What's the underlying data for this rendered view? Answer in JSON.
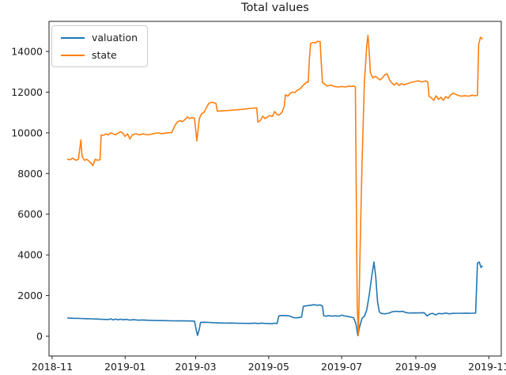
{
  "chart_data": {
    "type": "line",
    "title": "Total values",
    "legend_position": "upper left",
    "grid": false,
    "x_axis": {
      "unit": "days since 2018-11-01",
      "range": [
        -2.6,
        375.4
      ],
      "ticks": [
        {
          "day": 0,
          "label": "2018-11"
        },
        {
          "day": 61,
          "label": "2019-01"
        },
        {
          "day": 120,
          "label": "2019-03"
        },
        {
          "day": 181,
          "label": "2019-05"
        },
        {
          "day": 242,
          "label": "2019-07"
        },
        {
          "day": 304,
          "label": "2019-09"
        },
        {
          "day": 365,
          "label": "2019-11"
        }
      ]
    },
    "y_axis": {
      "range": [
        -972,
        15480
      ],
      "ticks": [
        0,
        2000,
        4000,
        6000,
        8000,
        10000,
        12000,
        14000
      ]
    },
    "series": [
      {
        "name": "valuation",
        "color": "#1f77b4",
        "points": [
          [
            13,
            900
          ],
          [
            18,
            885
          ],
          [
            23,
            875
          ],
          [
            28,
            865
          ],
          [
            33,
            855
          ],
          [
            38,
            845
          ],
          [
            43,
            830
          ],
          [
            47,
            820
          ],
          [
            49,
            855
          ],
          [
            51,
            800
          ],
          [
            53,
            845
          ],
          [
            55,
            805
          ],
          [
            57,
            840
          ],
          [
            59,
            810
          ],
          [
            62,
            830
          ],
          [
            65,
            795
          ],
          [
            68,
            815
          ],
          [
            72,
            790
          ],
          [
            76,
            800
          ],
          [
            80,
            785
          ],
          [
            85,
            775
          ],
          [
            90,
            770
          ],
          [
            95,
            765
          ],
          [
            100,
            760
          ],
          [
            105,
            755
          ],
          [
            110,
            755
          ],
          [
            115,
            750
          ],
          [
            119,
            745
          ],
          [
            120.5,
            300
          ],
          [
            121.5,
            40
          ],
          [
            123,
            350
          ],
          [
            124,
            680
          ],
          [
            127,
            690
          ],
          [
            131,
            680
          ],
          [
            135,
            665
          ],
          [
            140,
            655
          ],
          [
            145,
            645
          ],
          [
            150,
            650
          ],
          [
            155,
            640
          ],
          [
            160,
            635
          ],
          [
            165,
            630
          ],
          [
            169,
            645
          ],
          [
            172,
            625
          ],
          [
            175,
            645
          ],
          [
            178,
            630
          ],
          [
            181,
            625
          ],
          [
            184,
            615
          ],
          [
            186,
            645
          ],
          [
            188,
            620
          ],
          [
            189.5,
            1000
          ],
          [
            192,
            1020
          ],
          [
            195,
            1015
          ],
          [
            198,
            1000
          ],
          [
            200,
            960
          ],
          [
            202,
            910
          ],
          [
            205,
            905
          ],
          [
            207,
            925
          ],
          [
            208.5,
            945
          ],
          [
            210,
            1470
          ],
          [
            213,
            1500
          ],
          [
            216,
            1525
          ],
          [
            219,
            1550
          ],
          [
            222,
            1520
          ],
          [
            224,
            1545
          ],
          [
            226,
            1480
          ],
          [
            227,
            1010
          ],
          [
            229,
            985
          ],
          [
            231,
            1015
          ],
          [
            234,
            990
          ],
          [
            237,
            1005
          ],
          [
            240,
            985
          ],
          [
            242,
            1040
          ],
          [
            244,
            1000
          ],
          [
            246,
            985
          ],
          [
            248,
            960
          ],
          [
            250,
            940
          ],
          [
            252,
            910
          ],
          [
            254,
            600
          ],
          [
            255.5,
            30
          ],
          [
            257,
            450
          ],
          [
            259,
            880
          ],
          [
            261,
            980
          ],
          [
            263,
            1300
          ],
          [
            265,
            2000
          ],
          [
            267,
            2900
          ],
          [
            269,
            3650
          ],
          [
            270.5,
            2900
          ],
          [
            272,
            1700
          ],
          [
            273.5,
            1200
          ],
          [
            275,
            1120
          ],
          [
            278,
            1100
          ],
          [
            281,
            1130
          ],
          [
            284,
            1200
          ],
          [
            287,
            1225
          ],
          [
            290,
            1215
          ],
          [
            293,
            1225
          ],
          [
            296,
            1160
          ],
          [
            299,
            1140
          ],
          [
            302,
            1150
          ],
          [
            305,
            1145
          ],
          [
            308,
            1150
          ],
          [
            311,
            1155
          ],
          [
            313.5,
            1000
          ],
          [
            315.5,
            1090
          ],
          [
            318,
            1125
          ],
          [
            320.5,
            1050
          ],
          [
            323,
            1120
          ],
          [
            326,
            1100
          ],
          [
            329,
            1145
          ],
          [
            332,
            1100
          ],
          [
            335,
            1125
          ],
          [
            338,
            1130
          ],
          [
            342,
            1130
          ],
          [
            346,
            1135
          ],
          [
            350,
            1130
          ],
          [
            354,
            1140
          ],
          [
            355.5,
            3600
          ],
          [
            357,
            3650
          ],
          [
            358.5,
            3380
          ],
          [
            359.5,
            3450
          ]
        ]
      },
      {
        "name": "state",
        "color": "#ff7f0e",
        "points": [
          [
            13,
            8700
          ],
          [
            15,
            8680
          ],
          [
            17,
            8750
          ],
          [
            20,
            8650
          ],
          [
            22,
            8700
          ],
          [
            24,
            9650
          ],
          [
            25,
            8850
          ],
          [
            27,
            8650
          ],
          [
            29,
            8700
          ],
          [
            31,
            8600
          ],
          [
            33,
            8480
          ],
          [
            34,
            8380
          ],
          [
            36,
            8700
          ],
          [
            38,
            8650
          ],
          [
            40,
            8680
          ],
          [
            41,
            9900
          ],
          [
            43,
            9880
          ],
          [
            45,
            9950
          ],
          [
            47,
            9900
          ],
          [
            49,
            10000
          ],
          [
            51,
            9950
          ],
          [
            53,
            9900
          ],
          [
            55,
            9980
          ],
          [
            57,
            10050
          ],
          [
            59,
            10000
          ],
          [
            61,
            9820
          ],
          [
            63,
            9950
          ],
          [
            65,
            9700
          ],
          [
            67,
            9900
          ],
          [
            70,
            9950
          ],
          [
            73,
            9900
          ],
          [
            76,
            9950
          ],
          [
            80,
            9900
          ],
          [
            84,
            9950
          ],
          [
            88,
            10000
          ],
          [
            92,
            9960
          ],
          [
            96,
            10000
          ],
          [
            100,
            10020
          ],
          [
            103,
            10400
          ],
          [
            105,
            10550
          ],
          [
            107,
            10600
          ],
          [
            109,
            10550
          ],
          [
            111,
            10650
          ],
          [
            113,
            10780
          ],
          [
            115,
            10700
          ],
          [
            117,
            10750
          ],
          [
            119,
            10720
          ],
          [
            121,
            9600
          ],
          [
            123,
            10700
          ],
          [
            125,
            10950
          ],
          [
            127,
            11000
          ],
          [
            129,
            11250
          ],
          [
            131,
            11450
          ],
          [
            133,
            11500
          ],
          [
            135,
            11480
          ],
          [
            137,
            11450
          ],
          [
            138,
            11060
          ],
          [
            142,
            11080
          ],
          [
            148,
            11100
          ],
          [
            154,
            11130
          ],
          [
            160,
            11160
          ],
          [
            166,
            11200
          ],
          [
            171,
            11230
          ],
          [
            172,
            10530
          ],
          [
            174,
            10600
          ],
          [
            176,
            10820
          ],
          [
            178,
            10700
          ],
          [
            180,
            10780
          ],
          [
            182,
            10850
          ],
          [
            184,
            10800
          ],
          [
            186,
            11050
          ],
          [
            188,
            10900
          ],
          [
            190,
            10880
          ],
          [
            192,
            11000
          ],
          [
            194,
            11300
          ],
          [
            195,
            11870
          ],
          [
            197,
            11800
          ],
          [
            199,
            11950
          ],
          [
            201,
            12000
          ],
          [
            203,
            11980
          ],
          [
            205,
            12100
          ],
          [
            207,
            12150
          ],
          [
            209,
            12280
          ],
          [
            211,
            12400
          ],
          [
            213,
            12500
          ],
          [
            214,
            12480
          ],
          [
            215,
            13600
          ],
          [
            216,
            14380
          ],
          [
            218,
            14450
          ],
          [
            220,
            14420
          ],
          [
            222,
            14500
          ],
          [
            224,
            14480
          ],
          [
            225,
            13400
          ],
          [
            226,
            12480
          ],
          [
            228,
            12380
          ],
          [
            230,
            12300
          ],
          [
            233,
            12350
          ],
          [
            236,
            12280
          ],
          [
            239,
            12250
          ],
          [
            242,
            12280
          ],
          [
            245,
            12250
          ],
          [
            248,
            12300
          ],
          [
            250,
            12280
          ],
          [
            252,
            12300
          ],
          [
            253.5,
            12250
          ],
          [
            255,
            1500
          ],
          [
            256,
            50
          ],
          [
            257.5,
            4500
          ],
          [
            259,
            8500
          ],
          [
            261,
            12500
          ],
          [
            263,
            14300
          ],
          [
            264,
            14800
          ],
          [
            265,
            14000
          ],
          [
            266,
            12950
          ],
          [
            268,
            12700
          ],
          [
            270,
            12780
          ],
          [
            272,
            12700
          ],
          [
            274,
            12600
          ],
          [
            276,
            12700
          ],
          [
            278,
            12850
          ],
          [
            280,
            12900
          ],
          [
            282,
            12600
          ],
          [
            284,
            12450
          ],
          [
            286,
            12350
          ],
          [
            288,
            12450
          ],
          [
            290,
            12330
          ],
          [
            292,
            12420
          ],
          [
            294,
            12360
          ],
          [
            296,
            12400
          ],
          [
            298,
            12430
          ],
          [
            300,
            12480
          ],
          [
            303,
            12520
          ],
          [
            306,
            12560
          ],
          [
            309,
            12500
          ],
          [
            312,
            12550
          ],
          [
            314,
            12500
          ],
          [
            315,
            11800
          ],
          [
            317,
            11720
          ],
          [
            319,
            11600
          ],
          [
            321,
            11820
          ],
          [
            323,
            11640
          ],
          [
            325,
            11750
          ],
          [
            327,
            11600
          ],
          [
            329,
            11780
          ],
          [
            331,
            11700
          ],
          [
            333,
            11850
          ],
          [
            335,
            11950
          ],
          [
            337,
            11900
          ],
          [
            339,
            11850
          ],
          [
            342,
            11800
          ],
          [
            345,
            11820
          ],
          [
            348,
            11800
          ],
          [
            351,
            11850
          ],
          [
            354,
            11820
          ],
          [
            355.5,
            11850
          ],
          [
            356.5,
            14350
          ],
          [
            358,
            14700
          ],
          [
            359.5,
            14620
          ]
        ]
      }
    ]
  }
}
